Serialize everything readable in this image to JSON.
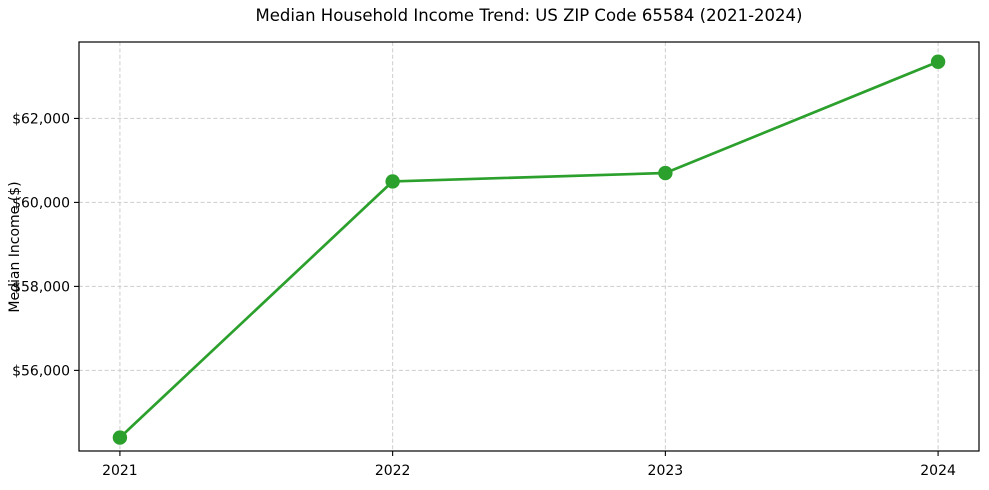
{
  "chart_data": {
    "type": "line",
    "title": "Median Household Income Trend: US ZIP Code 65584 (2021-2024)",
    "xlabel": "",
    "ylabel": "Median Income ($)",
    "categories": [
      "2021",
      "2022",
      "2023",
      "2024"
    ],
    "series": [
      {
        "name": "Median household income",
        "values": [
          54400,
          60500,
          60700,
          63350
        ]
      }
    ],
    "y_ticks": [
      56000,
      58000,
      60000,
      62000
    ],
    "y_tick_labels": [
      "$56,000",
      "$58,000",
      "$60,000",
      "$62,000"
    ],
    "ylim": [
      54080,
      63820
    ],
    "x_margin": 0.15,
    "grid": true,
    "grid_style": "dashed",
    "legend": false,
    "colors": {
      "line": "#2ca02c",
      "marker": "#2ca02c",
      "grid": "#cdcdcd",
      "spine": "#000000",
      "text": "#000000",
      "background": "#ffffff"
    }
  }
}
